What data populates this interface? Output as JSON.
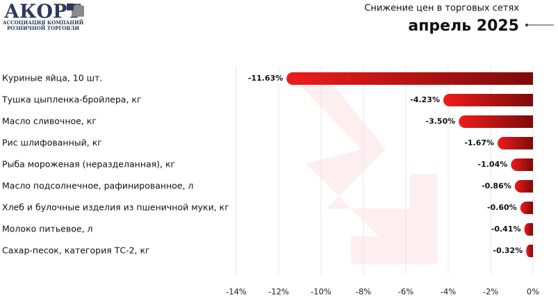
{
  "logo": {
    "name": "АКОРТ",
    "tagline_1": "АССОЦИАЦИЯ КОМПАНИЙ",
    "tagline_2": "РОЗНИЧНОЙ ТОРГОВЛИ"
  },
  "chart_data": {
    "type": "bar",
    "orientation": "horizontal",
    "title": "Снижение цен в торговых сетях",
    "subtitle": "апрель 2025",
    "categories": [
      "Куриные яйца, 10 шт.",
      "Тушка цыпленка-бройлера, кг",
      "Масло сливочное, кг",
      "Рис шлифованный, кг",
      "Рыба мороженая (неразделанная), кг",
      "Масло подсолнечное, рафинированное, л",
      "Хлеб и булочные изделия из пшеничной муки, кг",
      "Молоко питьевое, л",
      "Сахар-песок, категория ТС-2, кг"
    ],
    "values": [
      -11.63,
      -4.23,
      -3.5,
      -1.67,
      -1.04,
      -0.86,
      -0.6,
      -0.41,
      -0.32
    ],
    "value_labels": [
      "-11.63%",
      "-4.23%",
      "-3.50%",
      "-1.67%",
      "-1.04%",
      "-0.86%",
      "-0.60%",
      "-0.41%",
      "-0.32%"
    ],
    "colors": [
      "#ee1c1c",
      "#7e0a0a"
    ],
    "xlim": [
      -14,
      0
    ],
    "xticks": [
      {
        "value": -14,
        "label": "-14%"
      },
      {
        "value": -12,
        "label": "-12%"
      },
      {
        "value": -10,
        "label": "-10%"
      },
      {
        "value": -8,
        "label": "-8%"
      },
      {
        "value": -6,
        "label": "-6%"
      },
      {
        "value": -4,
        "label": "-4%"
      },
      {
        "value": -2,
        "label": "-2%"
      },
      {
        "value": 0,
        "label": "0%"
      }
    ],
    "grid": true
  }
}
